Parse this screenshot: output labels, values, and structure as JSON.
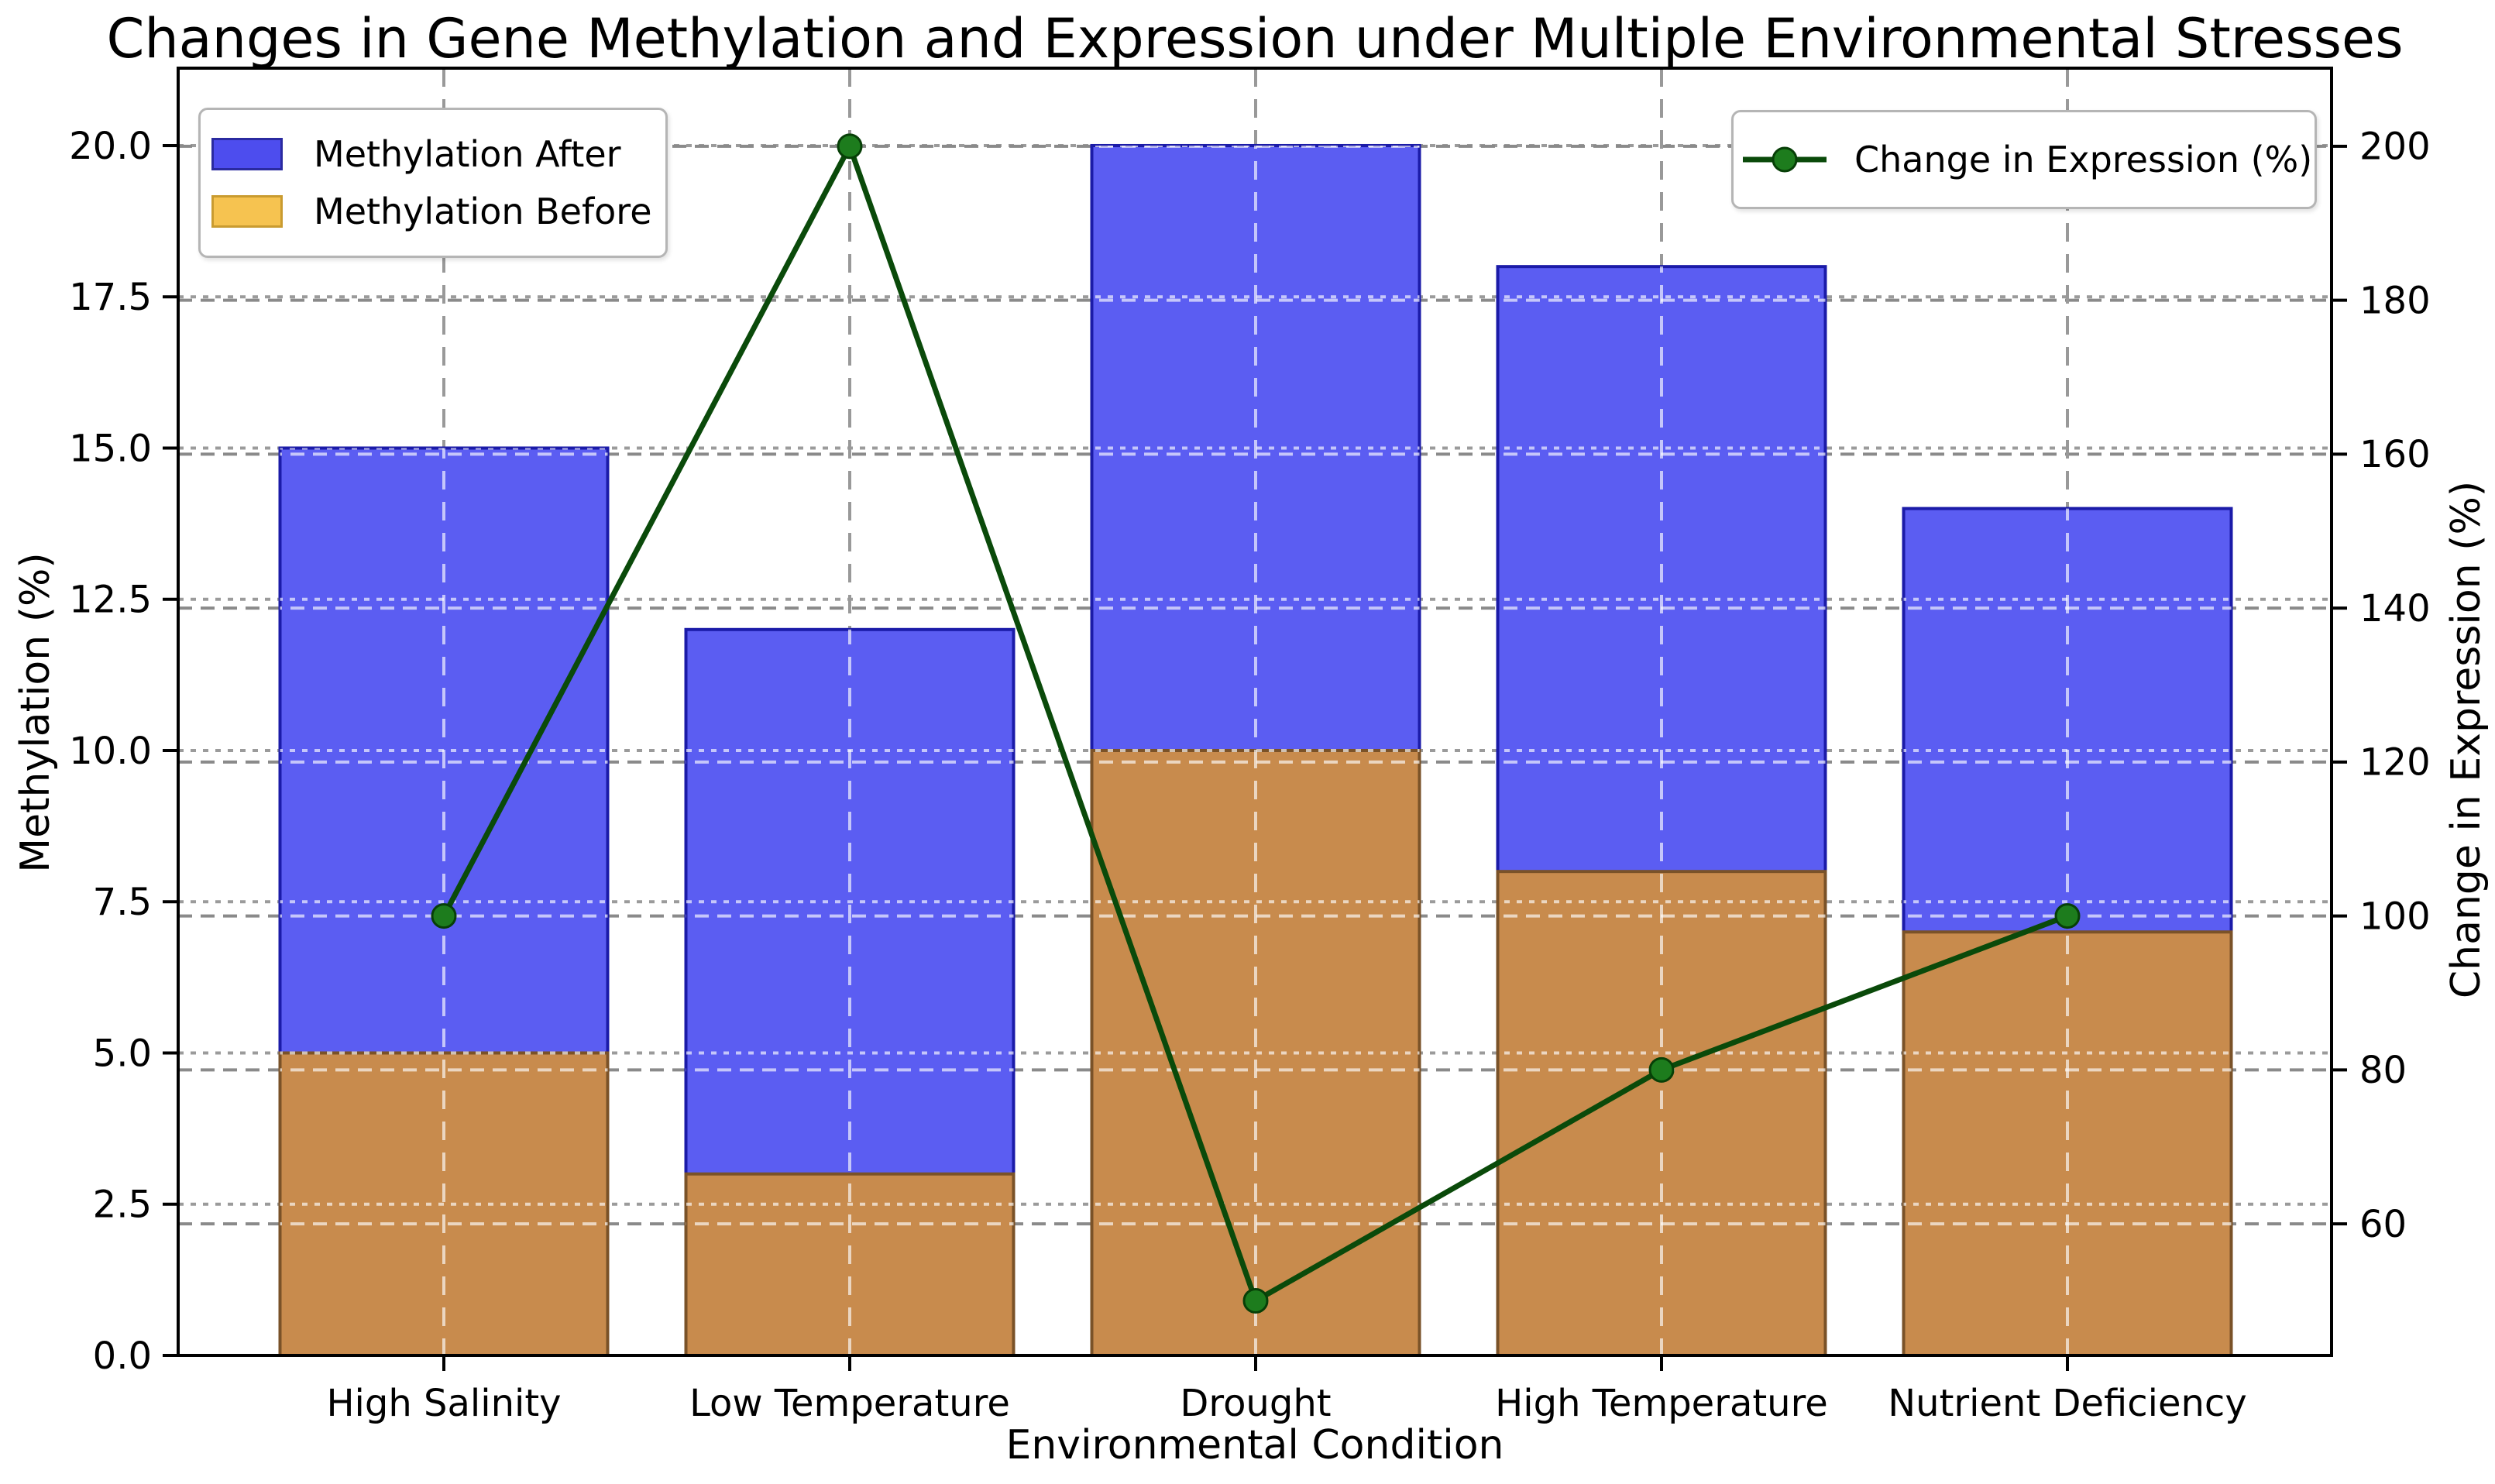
{
  "title": "Changes in Gene Methylation and Expression under Multiple Environmental Stresses",
  "chart_data": {
    "type": "combo",
    "categories": [
      "High Salinity",
      "Low Temperature",
      "Drought",
      "High Temperature",
      "Nutrient Deficiency"
    ],
    "series": [
      {
        "name": "Methylation After",
        "type": "bar",
        "axis": "left",
        "values": [
          15,
          12,
          20,
          18,
          14
        ]
      },
      {
        "name": "Methylation Before",
        "type": "bar",
        "axis": "left",
        "values": [
          5,
          3,
          10,
          8,
          7
        ]
      },
      {
        "name": "Change in Expression (%)",
        "type": "line",
        "axis": "right",
        "values": [
          100,
          200,
          50,
          80,
          100
        ]
      }
    ],
    "title": "Changes in Gene Methylation and Expression under Multiple Environmental Stresses",
    "xlabel": "Environmental Condition",
    "ylabel_left": "Methylation (%)",
    "ylabel_right": "Change in Expression (%)",
    "y_left": {
      "tick_values": [
        0,
        2.5,
        5,
        7.5,
        10,
        12.5,
        15,
        17.5,
        20
      ],
      "tick_labels": [
        "0.0",
        "2.5",
        "5.0",
        "7.5",
        "10.0",
        "12.5",
        "15.0",
        "17.5",
        "20.0"
      ],
      "lim": [
        0,
        21.28
      ]
    },
    "y_right": {
      "tick_values": [
        60,
        80,
        100,
        120,
        140,
        160,
        180,
        200
      ],
      "tick_labels": [
        "60",
        "80",
        "100",
        "120",
        "140",
        "160",
        "180",
        "200"
      ],
      "lim": [
        42.9,
        210.15
      ]
    },
    "grid": true,
    "legend_positions": [
      "upper left",
      "upper right"
    ]
  },
  "colors": {
    "bar_after_fill": "#5b5df2",
    "bar_after_edge": "#1b1ba8",
    "bar_before_fill": "#c88b4d",
    "bar_before_edge": "#7a5228",
    "line": "#0a4a0a",
    "marker_fill": "#1d7c1d",
    "marker_edge": "#073f07",
    "legend_after_fill": "#4d4dee",
    "legend_after_edge": "#2a2aa0",
    "legend_before_fill": "#f6c350",
    "legend_before_edge": "#c99b30",
    "grid_left": "#9b9b9b",
    "grid_right": "#8a8a8a",
    "grid_vertical": "#999999",
    "frame": "#000000",
    "text": "#000000",
    "background": "#ffffff"
  }
}
